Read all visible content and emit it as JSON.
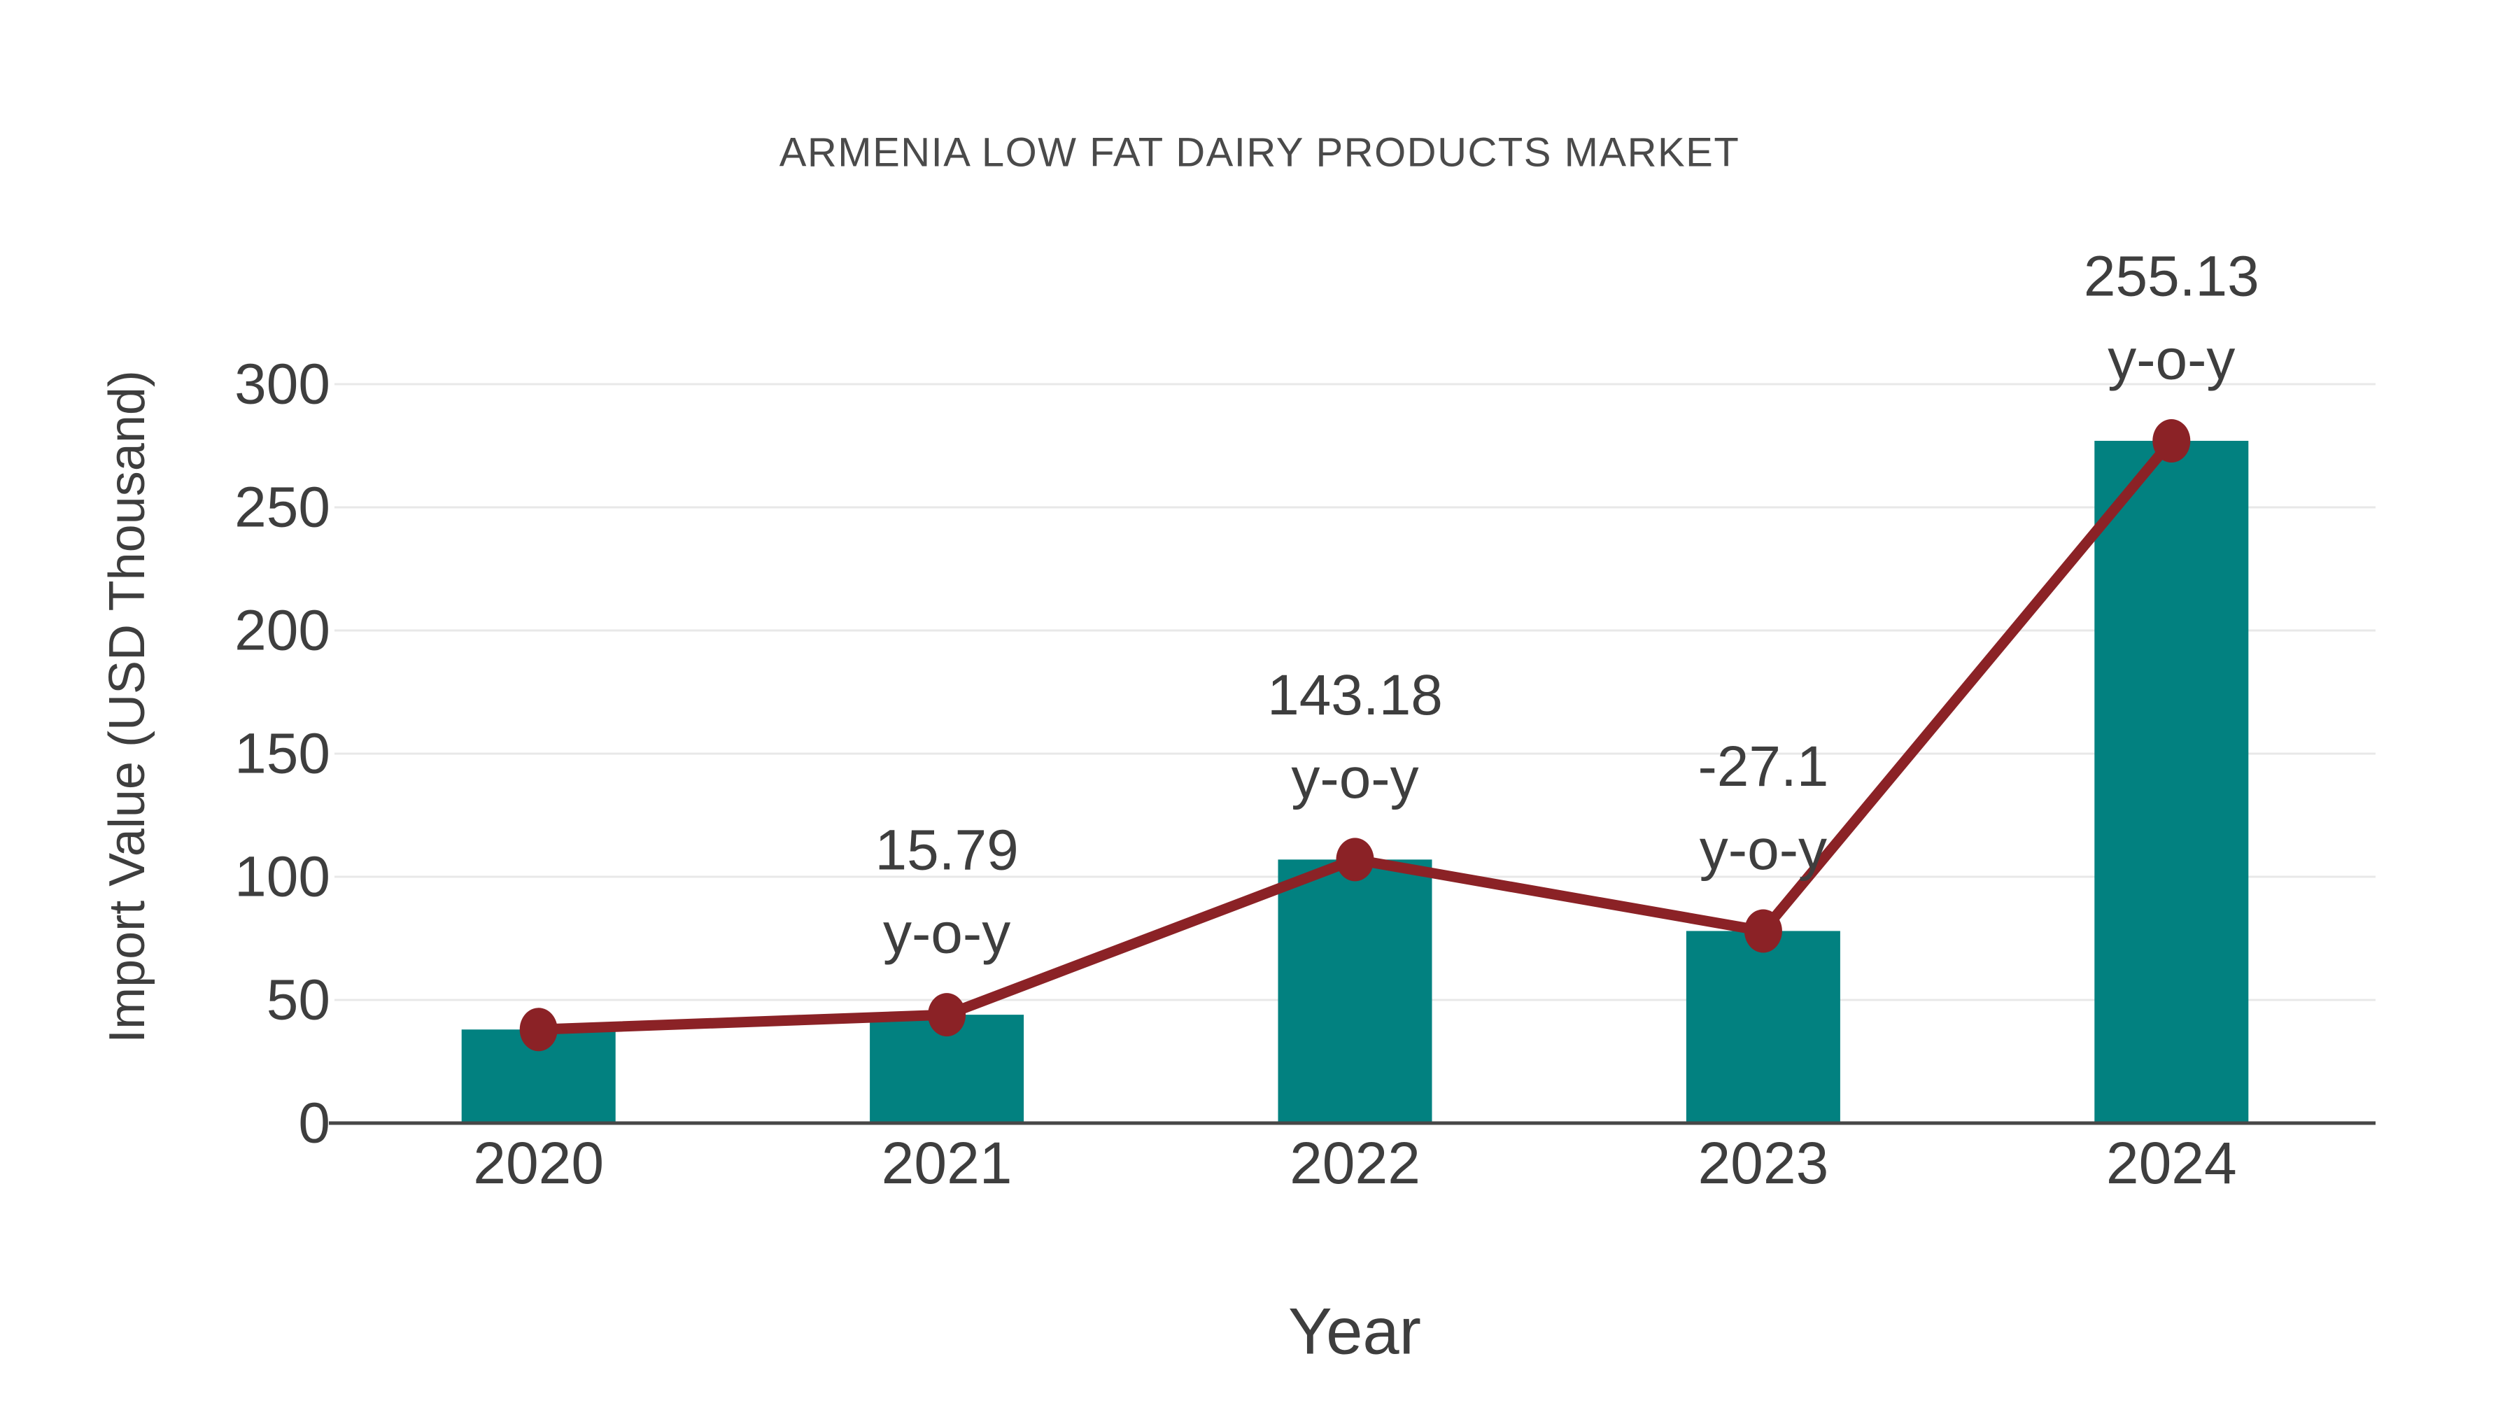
{
  "title": "ARMENIA LOW FAT DAIRY PRODUCTS MARKET",
  "colors": {
    "bar": "#028180",
    "line": "#8B2226",
    "marker": "#8B2226",
    "text": "#3E3E3E",
    "title_text": "#4A4A4A",
    "grid": "#E8E8E8",
    "axis": "#474747",
    "background": "#FFFFFF"
  },
  "chart_data": {
    "type": "bar",
    "title": "ARMENIA LOW FAT DAIRY PRODUCTS MARKET",
    "xlabel": "Year",
    "ylabel": "Import Value (USD Thousand)",
    "categories": [
      "2020",
      "2021",
      "2022",
      "2023",
      "2024"
    ],
    "series": [
      {
        "name": "Import Value bars",
        "type": "bar",
        "values": [
          38,
          44,
          107,
          78,
          277
        ]
      },
      {
        "name": "Import Value trend line",
        "type": "line",
        "values": [
          38,
          44,
          107,
          78,
          277
        ]
      }
    ],
    "annotations": [
      {
        "category": "2021",
        "value": "15.79",
        "label": "y-o-y"
      },
      {
        "category": "2022",
        "value": "143.18",
        "label": "y-o-y"
      },
      {
        "category": "2023",
        "value": "-27.1",
        "label": "y-o-y"
      },
      {
        "category": "2024",
        "value": "255.13",
        "label": "y-o-y"
      }
    ],
    "ylim": [
      0,
      300
    ],
    "yticks": [
      0,
      50,
      100,
      150,
      200,
      250,
      300
    ],
    "grid": true,
    "legend": false
  }
}
